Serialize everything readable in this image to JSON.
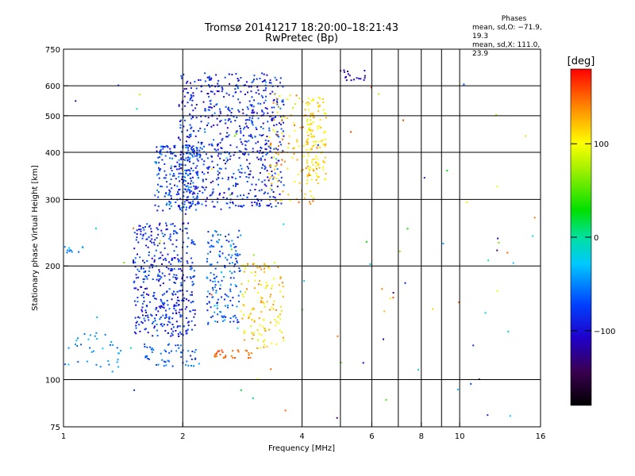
{
  "header": {
    "title": "Tromsø 20141217 18:20:00–18:21:43",
    "subtitle": "RwPretec (Bp)"
  },
  "phases_box": {
    "title": "Phases",
    "line1": "mean, sd,O: −71.9, 19.3",
    "line2": "mean, sd,X: 111.0, 23.9"
  },
  "colorbar": {
    "label": "[deg]",
    "range": [
      -180,
      180
    ],
    "ticks": [
      {
        "value": 100,
        "label": "100"
      },
      {
        "value": 0,
        "label": "0"
      },
      {
        "value": -100,
        "label": "−100"
      }
    ]
  },
  "chart_data": {
    "type": "scatter",
    "title": "Tromsø 20141217 18:20:00–18:21:43",
    "subtitle": "RwPretec (Bp)",
    "xlabel": "Frequency [MHz]",
    "ylabel": "Stationary phase Virtual Height [km]",
    "x_scale": "log",
    "y_scale": "log",
    "xlim": [
      1,
      16
    ],
    "ylim": [
      75,
      750
    ],
    "x_ticks": [
      {
        "value": 1,
        "label": "1"
      },
      {
        "value": 2,
        "label": "2"
      },
      {
        "value": 4,
        "label": "4"
      },
      {
        "value": 6,
        "label": "6"
      },
      {
        "value": 8,
        "label": "8"
      },
      {
        "value": 10,
        "label": "10"
      },
      {
        "value": 16,
        "label": "16"
      }
    ],
    "x_gridlines": [
      2,
      4,
      5,
      6,
      7,
      8,
      9,
      10
    ],
    "y_ticks": [
      {
        "value": 75,
        "label": "75"
      },
      {
        "value": 100,
        "label": "100"
      },
      {
        "value": 200,
        "label": "200"
      },
      {
        "value": 300,
        "label": "300"
      },
      {
        "value": 400,
        "label": "400"
      },
      {
        "value": 500,
        "label": "500"
      },
      {
        "value": 600,
        "label": "600"
      },
      {
        "value": 750,
        "label": "750"
      }
    ],
    "y_gridlines": [
      100,
      200,
      300,
      400,
      500,
      600
    ],
    "colormap": "rainbow (black→purple→blue→cyan→green→yellow→red)",
    "color_value": "phase [deg]",
    "series": [
      {
        "freq_range": [
          1.95,
          3.6
        ],
        "height_range": [
          285,
          650
        ],
        "phase_range": [
          -120,
          -90
        ]
      },
      {
        "freq_range": [
          1.7,
          2.2
        ],
        "height_range": [
          280,
          420
        ],
        "phase_range": [
          -115,
          -85
        ]
      },
      {
        "freq_range": [
          1.5,
          2.15
        ],
        "height_range": [
          130,
          260
        ],
        "phase_range": [
          -120,
          -90
        ]
      },
      {
        "freq_range": [
          2.3,
          2.8
        ],
        "height_range": [
          140,
          250
        ],
        "phase_range": [
          -110,
          -80
        ]
      },
      {
        "freq_range": [
          1.0,
          1.4
        ],
        "height_range": [
          108,
          135
        ],
        "phase_range": [
          -95,
          -80
        ]
      },
      {
        "freq_range": [
          1.6,
          2.2
        ],
        "height_range": [
          108,
          125
        ],
        "phase_range": [
          -105,
          -85
        ]
      },
      {
        "freq_range": [
          1.0,
          1.12
        ],
        "height_range": [
          215,
          225
        ],
        "phase_range": [
          -95,
          -80
        ]
      },
      {
        "freq_range": [
          3.3,
          4.4
        ],
        "height_range": [
          290,
          580
        ],
        "phase_range": [
          80,
          150
        ]
      },
      {
        "freq_range": [
          4.1,
          4.6
        ],
        "height_range": [
          330,
          560
        ],
        "phase_range": [
          90,
          125
        ]
      },
      {
        "freq_range": [
          2.8,
          3.6
        ],
        "height_range": [
          120,
          205
        ],
        "phase_range": [
          80,
          140
        ]
      },
      {
        "freq_range": [
          2.4,
          3.0
        ],
        "height_range": [
          114,
          120
        ],
        "phase_range": [
          140,
          160
        ]
      },
      {
        "freq_range": [
          5.0,
          5.8
        ],
        "height_range": [
          620,
          660
        ],
        "phase_range": [
          -140,
          -110
        ]
      },
      {
        "freq_range": [
          1.0,
          16.0
        ],
        "height_range": [
          78,
          660
        ],
        "phase_range": [
          -140,
          160
        ]
      }
    ]
  }
}
